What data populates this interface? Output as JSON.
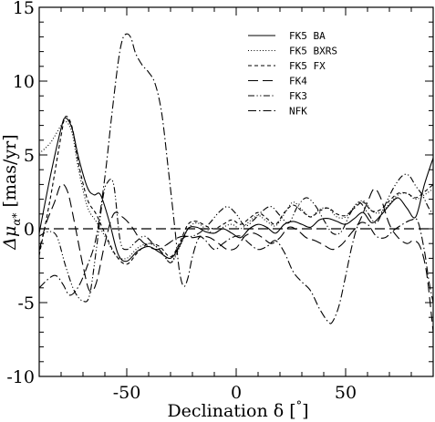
{
  "chart_data": {
    "type": "line",
    "title": "",
    "xlabel": "Declination δ [°]",
    "ylabel": "Δμ_α* [mas/yr]",
    "xlim": [
      -90,
      90
    ],
    "ylim": [
      -10,
      15
    ],
    "xticks": [
      -50,
      0,
      50
    ],
    "yticks": [
      -10,
      -5,
      0,
      5,
      10,
      15
    ],
    "grid": false,
    "legend_position": "top-right",
    "reference_line": {
      "y": 0,
      "style": "long-dash"
    },
    "series": [
      {
        "name": "FK5 BA",
        "style": "solid",
        "points": [
          [
            -90,
            -0.3
          ],
          [
            -85,
            3.5
          ],
          [
            -80,
            6.8
          ],
          [
            -78,
            7.5
          ],
          [
            -75,
            6.8
          ],
          [
            -72,
            4.8
          ],
          [
            -68,
            2.8
          ],
          [
            -65,
            2.3
          ],
          [
            -62,
            2.3
          ],
          [
            -58,
            0.5
          ],
          [
            -54,
            -1.7
          ],
          [
            -50,
            -2.2
          ],
          [
            -45,
            -1.5
          ],
          [
            -40,
            -1.2
          ],
          [
            -35,
            -1.6
          ],
          [
            -30,
            -2.0
          ],
          [
            -26,
            -1.2
          ],
          [
            -22,
            0.0
          ],
          [
            -18,
            0.1
          ],
          [
            -14,
            -0.2
          ],
          [
            -10,
            -0.3
          ],
          [
            -6,
            0.0
          ],
          [
            -2,
            -0.3
          ],
          [
            2,
            -0.6
          ],
          [
            6,
            0.0
          ],
          [
            10,
            0.3
          ],
          [
            14,
            0.1
          ],
          [
            18,
            -0.3
          ],
          [
            22,
            0.3
          ],
          [
            26,
            0.5
          ],
          [
            30,
            0.3
          ],
          [
            34,
            0.1
          ],
          [
            38,
            0.6
          ],
          [
            42,
            0.7
          ],
          [
            46,
            0.5
          ],
          [
            50,
            0.3
          ],
          [
            54,
            0.7
          ],
          [
            58,
            1.1
          ],
          [
            62,
            0.4
          ],
          [
            66,
            0.9
          ],
          [
            70,
            1.6
          ],
          [
            74,
            2.1
          ],
          [
            78,
            1.4
          ],
          [
            82,
            0.8
          ],
          [
            86,
            3.0
          ],
          [
            90,
            4.8
          ]
        ]
      },
      {
        "name": "FK5 BXRS",
        "style": "dotted",
        "points": [
          [
            -90,
            5.1
          ],
          [
            -85,
            5.8
          ],
          [
            -80,
            7.0
          ],
          [
            -78,
            7.3
          ],
          [
            -75,
            6.5
          ],
          [
            -72,
            4.0
          ],
          [
            -68,
            1.5
          ],
          [
            -64,
            0.5
          ],
          [
            -60,
            -0.5
          ],
          [
            -55,
            -1.8
          ],
          [
            -50,
            -2.0
          ],
          [
            -45,
            -1.3
          ],
          [
            -40,
            -1.0
          ],
          [
            -35,
            -1.4
          ],
          [
            -30,
            -2.3
          ],
          [
            -26,
            -1.3
          ],
          [
            -22,
            0.0
          ],
          [
            -18,
            0.4
          ],
          [
            -14,
            0.0
          ],
          [
            -10,
            -0.3
          ],
          [
            -6,
            0.1
          ],
          [
            -2,
            0.3
          ],
          [
            2,
            0.0
          ],
          [
            6,
            0.5
          ],
          [
            10,
            0.9
          ],
          [
            14,
            0.5
          ],
          [
            18,
            0.2
          ],
          [
            22,
            1.0
          ],
          [
            26,
            1.8
          ],
          [
            30,
            1.3
          ],
          [
            34,
            0.8
          ],
          [
            38,
            1.3
          ],
          [
            42,
            1.4
          ],
          [
            46,
            0.8
          ],
          [
            50,
            0.8
          ],
          [
            54,
            1.5
          ],
          [
            58,
            1.9
          ],
          [
            62,
            1.2
          ],
          [
            66,
            1.1
          ],
          [
            70,
            1.7
          ],
          [
            74,
            2.3
          ],
          [
            78,
            2.4
          ],
          [
            82,
            2.0
          ],
          [
            86,
            2.3
          ],
          [
            90,
            2.7
          ]
        ]
      },
      {
        "name": "FK5 FX",
        "style": "short-dash",
        "points": [
          [
            -90,
            -1.8
          ],
          [
            -85,
            2.0
          ],
          [
            -80,
            6.3
          ],
          [
            -78,
            7.6
          ],
          [
            -75,
            6.9
          ],
          [
            -72,
            4.4
          ],
          [
            -68,
            2.0
          ],
          [
            -64,
            1.0
          ],
          [
            -60,
            -0.3
          ],
          [
            -55,
            -1.8
          ],
          [
            -50,
            -2.4
          ],
          [
            -45,
            -1.6
          ],
          [
            -40,
            -1.0
          ],
          [
            -35,
            -1.2
          ],
          [
            -30,
            -1.9
          ],
          [
            -26,
            -1.0
          ],
          [
            -22,
            0.3
          ],
          [
            -18,
            0.5
          ],
          [
            -14,
            0.2
          ],
          [
            -10,
            0.0
          ],
          [
            -6,
            0.3
          ],
          [
            -2,
            0.6
          ],
          [
            2,
            0.3
          ],
          [
            6,
            0.7
          ],
          [
            10,
            1.1
          ],
          [
            14,
            0.7
          ],
          [
            18,
            0.3
          ],
          [
            22,
            1.1
          ],
          [
            26,
            1.6
          ],
          [
            30,
            1.2
          ],
          [
            34,
            0.8
          ],
          [
            38,
            1.2
          ],
          [
            42,
            1.4
          ],
          [
            46,
            1.0
          ],
          [
            50,
            0.9
          ],
          [
            54,
            1.4
          ],
          [
            58,
            1.8
          ],
          [
            62,
            1.2
          ],
          [
            66,
            1.3
          ],
          [
            70,
            1.9
          ],
          [
            74,
            2.4
          ],
          [
            78,
            2.4
          ],
          [
            82,
            2.1
          ],
          [
            86,
            2.5
          ],
          [
            90,
            3.0
          ]
        ]
      },
      {
        "name": "FK4",
        "style": "long-dash",
        "points": [
          [
            -90,
            -1.5
          ],
          [
            -87,
            0.3
          ],
          [
            -83,
            1.8
          ],
          [
            -80,
            3.0
          ],
          [
            -77,
            2.5
          ],
          [
            -74,
            0.5
          ],
          [
            -70,
            -2.5
          ],
          [
            -67,
            -4.2
          ],
          [
            -64,
            -3.7
          ],
          [
            -60,
            -1.0
          ],
          [
            -56,
            1.0
          ],
          [
            -52,
            0.8
          ],
          [
            -48,
            0.2
          ],
          [
            -44,
            -0.7
          ],
          [
            -40,
            -1.2
          ],
          [
            -36,
            -1.4
          ],
          [
            -32,
            -1.1
          ],
          [
            -28,
            -0.7
          ],
          [
            -24,
            -0.5
          ],
          [
            -20,
            -0.6
          ],
          [
            -16,
            -0.5
          ],
          [
            -12,
            -0.6
          ],
          [
            -8,
            -1.0
          ],
          [
            -4,
            -1.4
          ],
          [
            0,
            -1.3
          ],
          [
            4,
            -0.5
          ],
          [
            8,
            -0.3
          ],
          [
            12,
            -0.6
          ],
          [
            16,
            -1.0
          ],
          [
            20,
            -0.6
          ],
          [
            24,
            0.1
          ],
          [
            28,
            -0.1
          ],
          [
            32,
            -0.6
          ],
          [
            36,
            -0.8
          ],
          [
            40,
            -1.1
          ],
          [
            44,
            -1.4
          ],
          [
            48,
            -1.1
          ],
          [
            52,
            -0.4
          ],
          [
            56,
            0.4
          ],
          [
            60,
            1.8
          ],
          [
            63,
            2.7
          ],
          [
            66,
            2.1
          ],
          [
            70,
            0.3
          ],
          [
            74,
            -0.6
          ],
          [
            78,
            -1.0
          ],
          [
            81,
            -0.8
          ],
          [
            84,
            -1.2
          ],
          [
            87,
            -3.0
          ],
          [
            90,
            -7.0
          ]
        ]
      },
      {
        "name": "FK3",
        "style": "dash-dot-dot",
        "points": [
          [
            -90,
            -0.5
          ],
          [
            -86,
            -0.2
          ],
          [
            -82,
            -0.5
          ],
          [
            -78,
            -2.5
          ],
          [
            -74,
            -4.2
          ],
          [
            -70,
            -4.9
          ],
          [
            -67,
            -4.5
          ],
          [
            -64,
            -1.5
          ],
          [
            -61,
            2.0
          ],
          [
            -59,
            3.1
          ],
          [
            -56,
            3.0
          ],
          [
            -53,
            -0.8
          ],
          [
            -50,
            -1.4
          ],
          [
            -46,
            -0.9
          ],
          [
            -42,
            -0.5
          ],
          [
            -38,
            -1.0
          ],
          [
            -34,
            -1.6
          ],
          [
            -30,
            -2.3
          ],
          [
            -27,
            -1.5
          ],
          [
            -24,
            -0.6
          ],
          [
            -20,
            -0.5
          ],
          [
            -16,
            -0.2
          ],
          [
            -12,
            0.4
          ],
          [
            -8,
            1.1
          ],
          [
            -4,
            1.5
          ],
          [
            0,
            1.0
          ],
          [
            4,
            0.2
          ],
          [
            8,
            0.6
          ],
          [
            12,
            1.2
          ],
          [
            16,
            1.5
          ],
          [
            20,
            0.9
          ],
          [
            24,
            0.4
          ],
          [
            28,
            1.5
          ],
          [
            32,
            2.1
          ],
          [
            36,
            1.6
          ],
          [
            40,
            0.6
          ],
          [
            44,
            -0.3
          ],
          [
            48,
            -0.2
          ],
          [
            52,
            1.0
          ],
          [
            56,
            1.8
          ],
          [
            60,
            1.1
          ],
          [
            64,
            0.4
          ],
          [
            68,
            1.6
          ],
          [
            72,
            2.8
          ],
          [
            76,
            3.6
          ],
          [
            79,
            3.6
          ],
          [
            82,
            2.9
          ],
          [
            85,
            2.3
          ],
          [
            88,
            1.4
          ],
          [
            90,
            1.0
          ]
        ]
      },
      {
        "name": "NFK",
        "style": "dash-dot",
        "points": [
          [
            -90,
            -4.0
          ],
          [
            -85,
            -3.3
          ],
          [
            -82,
            -3.2
          ],
          [
            -79,
            -3.8
          ],
          [
            -76,
            -4.5
          ],
          [
            -72,
            -3.9
          ],
          [
            -68,
            -2.5
          ],
          [
            -64,
            -0.6
          ],
          [
            -60,
            3.5
          ],
          [
            -57,
            7.5
          ],
          [
            -54,
            11.2
          ],
          [
            -52,
            12.8
          ],
          [
            -50,
            13.2
          ],
          [
            -48,
            12.9
          ],
          [
            -46,
            11.9
          ],
          [
            -43,
            11.1
          ],
          [
            -40,
            10.6
          ],
          [
            -37,
            9.8
          ],
          [
            -34,
            7.8
          ],
          [
            -31,
            4.0
          ],
          [
            -28,
            0.0
          ],
          [
            -26,
            -2.8
          ],
          [
            -24,
            -3.9
          ],
          [
            -22,
            -3.3
          ],
          [
            -20,
            -1.9
          ],
          [
            -17,
            -0.6
          ],
          [
            -14,
            -0.8
          ],
          [
            -10,
            -1.4
          ],
          [
            -6,
            -1.0
          ],
          [
            -2,
            -0.6
          ],
          [
            2,
            -0.5
          ],
          [
            6,
            -1.0
          ],
          [
            10,
            -1.4
          ],
          [
            14,
            -1.2
          ],
          [
            18,
            -0.8
          ],
          [
            22,
            -1.6
          ],
          [
            26,
            -2.9
          ],
          [
            30,
            -3.6
          ],
          [
            34,
            -4.2
          ],
          [
            38,
            -5.4
          ],
          [
            42,
            -6.3
          ],
          [
            44,
            -6.3
          ],
          [
            47,
            -5.2
          ],
          [
            50,
            -3.2
          ],
          [
            53,
            -1.1
          ],
          [
            56,
            0.3
          ],
          [
            60,
            0.3
          ],
          [
            64,
            -0.5
          ],
          [
            68,
            -0.6
          ],
          [
            72,
            -0.1
          ],
          [
            76,
            0.3
          ],
          [
            80,
            0.6
          ],
          [
            83,
            0.5
          ],
          [
            86,
            -1.5
          ],
          [
            88,
            -3.5
          ],
          [
            90,
            -5.0
          ]
        ]
      }
    ]
  }
}
